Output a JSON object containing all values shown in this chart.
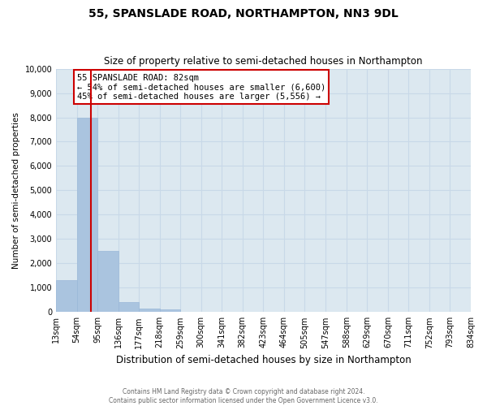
{
  "title": "55, SPANSLADE ROAD, NORTHAMPTON, NN3 9DL",
  "subtitle": "Size of property relative to semi-detached houses in Northampton",
  "xlabel": "Distribution of semi-detached houses by size in Northampton",
  "ylabel": "Number of semi-detached properties",
  "annotation_title": "55 SPANSLADE ROAD: 82sqm",
  "annotation_line1": "← 54% of semi-detached houses are smaller (6,600)",
  "annotation_line2": "45% of semi-detached houses are larger (5,556) →",
  "footer_line1": "Contains HM Land Registry data © Crown copyright and database right 2024.",
  "footer_line2": "Contains public sector information licensed under the Open Government Licence v3.0.",
  "bar_edges": [
    13,
    54,
    95,
    136,
    177,
    218,
    259,
    300,
    341,
    382,
    423,
    464,
    505,
    547,
    588,
    629,
    670,
    711,
    752,
    793,
    834
  ],
  "bar_heights": [
    1300,
    8000,
    2500,
    400,
    150,
    100,
    0,
    0,
    0,
    0,
    0,
    0,
    0,
    0,
    0,
    0,
    0,
    0,
    0,
    0
  ],
  "bar_color": "#aac4df",
  "bar_edgecolor": "#9ab8d8",
  "grid_color": "#c8d8e8",
  "background_color": "#dce8f0",
  "property_line_x": 82,
  "property_line_color": "#cc0000",
  "annotation_box_edgecolor": "#cc0000",
  "ylim": [
    0,
    10000
  ],
  "yticks": [
    0,
    1000,
    2000,
    3000,
    4000,
    5000,
    6000,
    7000,
    8000,
    9000,
    10000
  ],
  "tick_labels": [
    "13sqm",
    "54sqm",
    "95sqm",
    "136sqm",
    "177sqm",
    "218sqm",
    "259sqm",
    "300sqm",
    "341sqm",
    "382sqm",
    "423sqm",
    "464sqm",
    "505sqm",
    "547sqm",
    "588sqm",
    "629sqm",
    "670sqm",
    "711sqm",
    "752sqm",
    "793sqm",
    "834sqm"
  ]
}
